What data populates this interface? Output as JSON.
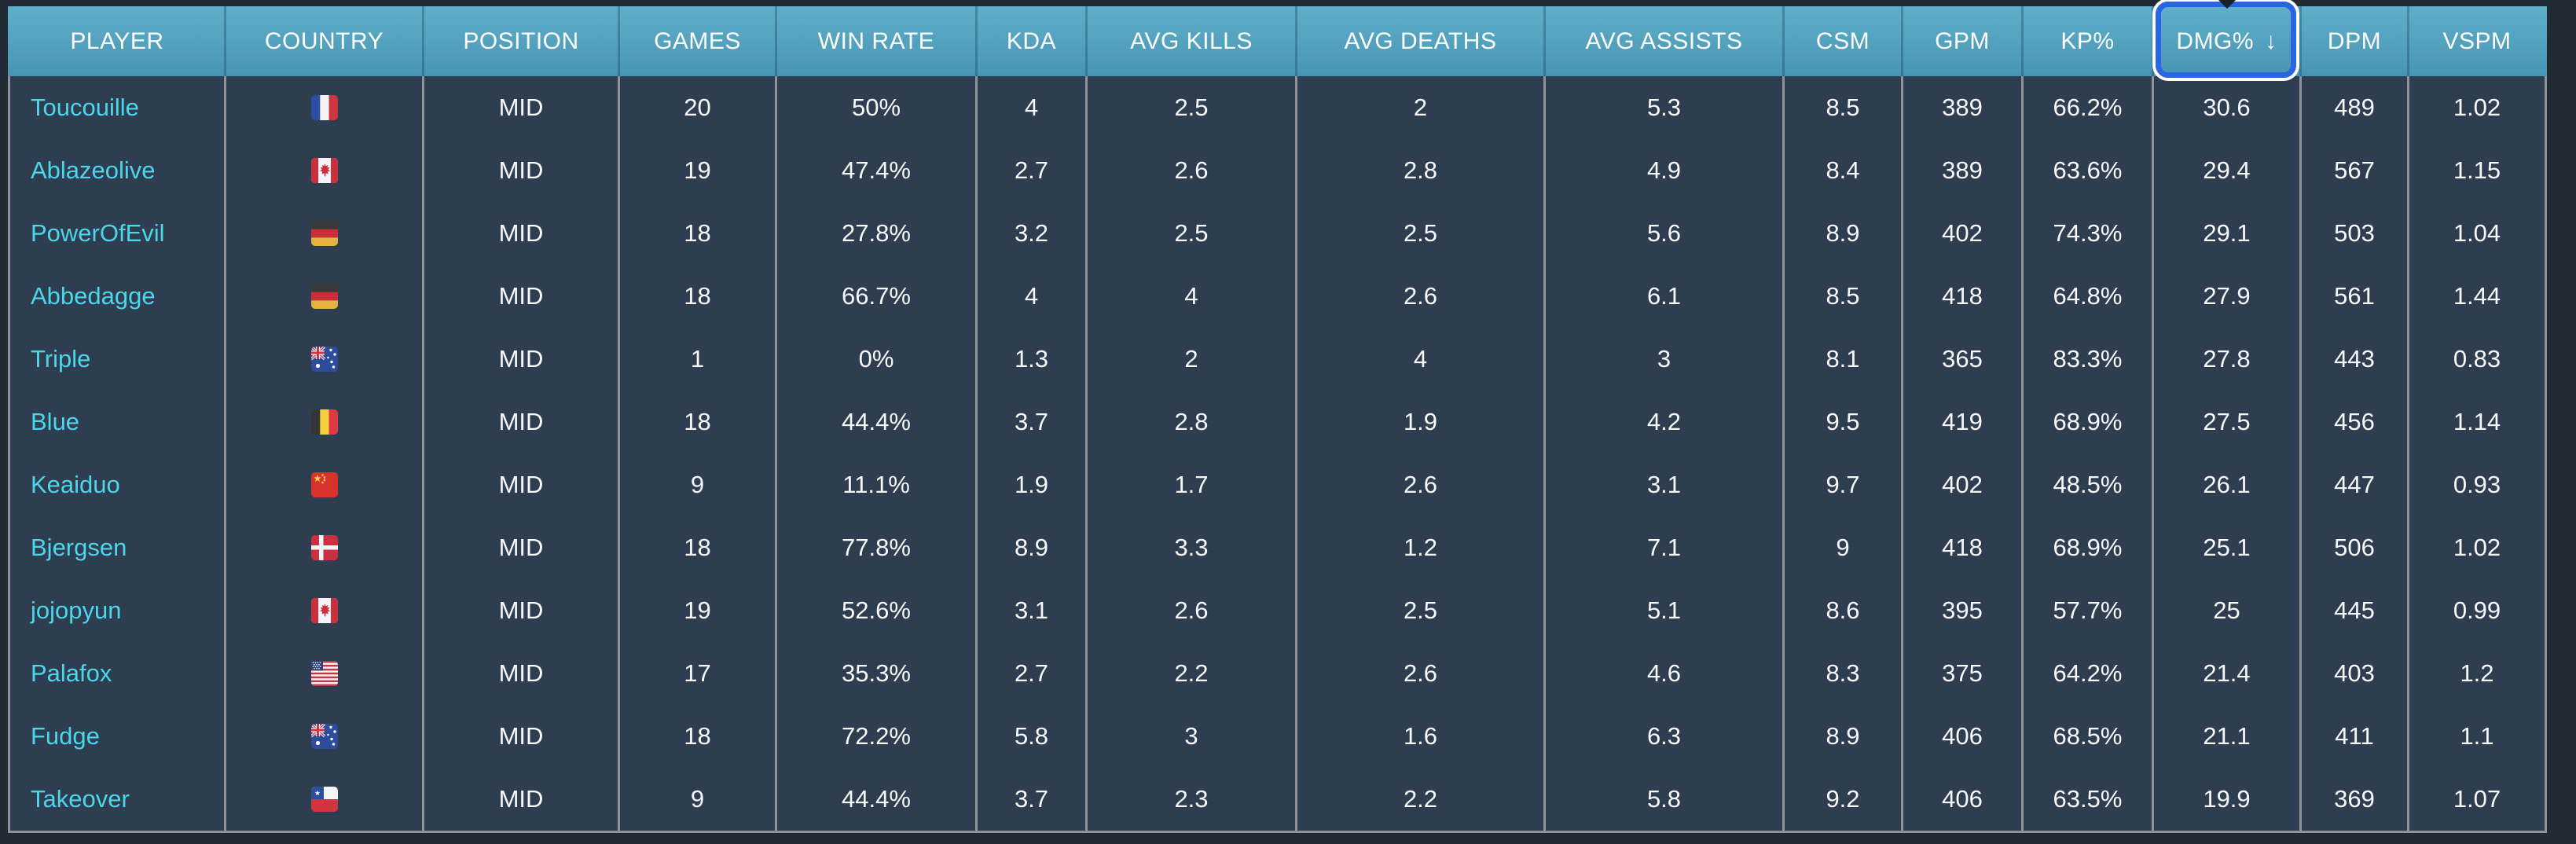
{
  "table": {
    "columns": [
      {
        "label": "PLAYER"
      },
      {
        "label": "COUNTRY"
      },
      {
        "label": "POSITION"
      },
      {
        "label": "GAMES"
      },
      {
        "label": "WIN RATE"
      },
      {
        "label": "KDA"
      },
      {
        "label": "AVG KILLS"
      },
      {
        "label": "AVG DEATHS"
      },
      {
        "label": "AVG ASSISTS"
      },
      {
        "label": "CSM"
      },
      {
        "label": "GPM"
      },
      {
        "label": "KP%"
      },
      {
        "label": "DMG%"
      },
      {
        "label": "DPM"
      },
      {
        "label": "VSPM"
      }
    ],
    "sort": {
      "column": "DMG%",
      "direction": "desc",
      "arrow": "↓"
    },
    "rows": [
      {
        "player": "Toucouille",
        "country": "France",
        "position": "MID",
        "stats": [
          "20",
          "50%",
          "4",
          "2.5",
          "2",
          "5.3",
          "8.5",
          "389",
          "66.2%",
          "30.6",
          "489",
          "1.02"
        ]
      },
      {
        "player": "Ablazeolive",
        "country": "Canada",
        "position": "MID",
        "stats": [
          "19",
          "47.4%",
          "2.7",
          "2.6",
          "2.8",
          "4.9",
          "8.4",
          "389",
          "63.6%",
          "29.4",
          "567",
          "1.15"
        ]
      },
      {
        "player": "PowerOfEvil",
        "country": "Germany",
        "position": "MID",
        "stats": [
          "18",
          "27.8%",
          "3.2",
          "2.5",
          "2.5",
          "5.6",
          "8.9",
          "402",
          "74.3%",
          "29.1",
          "503",
          "1.04"
        ]
      },
      {
        "player": "Abbedagge",
        "country": "Germany",
        "position": "MID",
        "stats": [
          "18",
          "66.7%",
          "4",
          "4",
          "2.6",
          "6.1",
          "8.5",
          "418",
          "64.8%",
          "27.9",
          "561",
          "1.44"
        ]
      },
      {
        "player": "Triple",
        "country": "Australia",
        "position": "MID",
        "stats": [
          "1",
          "0%",
          "1.3",
          "2",
          "4",
          "3",
          "8.1",
          "365",
          "83.3%",
          "27.8",
          "443",
          "0.83"
        ]
      },
      {
        "player": "Blue",
        "country": "Belgium",
        "position": "MID",
        "stats": [
          "18",
          "44.4%",
          "3.7",
          "2.8",
          "1.9",
          "4.2",
          "9.5",
          "419",
          "68.9%",
          "27.5",
          "456",
          "1.14"
        ]
      },
      {
        "player": "Keaiduo",
        "country": "China",
        "position": "MID",
        "stats": [
          "9",
          "11.1%",
          "1.9",
          "1.7",
          "2.6",
          "3.1",
          "9.7",
          "402",
          "48.5%",
          "26.1",
          "447",
          "0.93"
        ]
      },
      {
        "player": "Bjergsen",
        "country": "Denmark",
        "position": "MID",
        "stats": [
          "18",
          "77.8%",
          "8.9",
          "3.3",
          "1.2",
          "7.1",
          "9",
          "418",
          "68.9%",
          "25.1",
          "506",
          "1.02"
        ]
      },
      {
        "player": "jojopyun",
        "country": "Canada",
        "position": "MID",
        "stats": [
          "19",
          "52.6%",
          "3.1",
          "2.6",
          "2.5",
          "5.1",
          "8.6",
          "395",
          "57.7%",
          "25",
          "445",
          "0.99"
        ]
      },
      {
        "player": "Palafox",
        "country": "USA",
        "position": "MID",
        "stats": [
          "17",
          "35.3%",
          "2.7",
          "2.2",
          "2.6",
          "4.6",
          "8.3",
          "375",
          "64.2%",
          "21.4",
          "403",
          "1.2"
        ]
      },
      {
        "player": "Fudge",
        "country": "Australia",
        "position": "MID",
        "stats": [
          "18",
          "72.2%",
          "5.8",
          "3",
          "1.6",
          "6.3",
          "8.9",
          "406",
          "68.5%",
          "21.1",
          "411",
          "1.1"
        ]
      },
      {
        "player": "Takeover",
        "country": "Chile",
        "position": "MID",
        "stats": [
          "9",
          "44.4%",
          "3.7",
          "2.3",
          "2.2",
          "5.8",
          "9.2",
          "406",
          "63.5%",
          "19.9",
          "369",
          "1.07"
        ]
      }
    ]
  },
  "colors": {
    "page_bg": "#222a34",
    "row_bg": "#2e3d4f",
    "divider": "#8f9399",
    "player_link": "#4cd7e9",
    "text": "#f7f9fb",
    "focus_ring": "#2a65e4",
    "header_bg_top": "#60afc9",
    "header_bg_bottom": "#4795b4"
  }
}
